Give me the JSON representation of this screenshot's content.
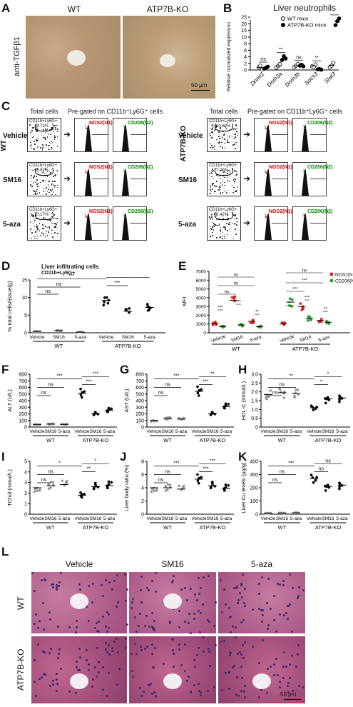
{
  "panelA": {
    "letter": "A",
    "wt": "WT",
    "ko": "ATP7B-KO",
    "ylabel": "anti-TGFβ1",
    "scale": "50 μm"
  },
  "panelB": {
    "letter": "B",
    "title": "Liver neutrophils",
    "ylabel": "Relative normalized expression",
    "legend": [
      "WT mice",
      "ATP7B-KO mice"
    ],
    "chart_data": {
      "type": "scatter",
      "categories": [
        "Dnmt1",
        "Dnm3a",
        "Dnm3b",
        "Socs3",
        "Stat3"
      ],
      "ylim": [
        0,
        25
      ],
      "yticks": [
        "0",
        "2",
        "4",
        "6",
        "8",
        "10",
        "15",
        "20",
        "25"
      ],
      "series": [
        {
          "name": "WT mice",
          "values": [
            [
              0.8,
              1.3,
              0.2
            ],
            [
              0.7,
              1.2,
              1.8
            ],
            [
              0.8,
              1.3,
              1.8
            ],
            [
              1.1,
              0.9,
              1.7
            ],
            [
              0.8,
              1.3,
              2.2
            ]
          ]
        },
        {
          "name": "ATP7B-KO mice",
          "values": [
            [
              0.4,
              0.7,
              1.0
            ],
            [
              3.0,
              4.2,
              3.5
            ],
            [
              1.3,
              1.6,
              1.1
            ],
            [
              0.2,
              0.3,
              0.1
            ],
            [
              19.0,
              22.0,
              24.0
            ]
          ]
        }
      ],
      "significance": [
        "ns",
        "**",
        "ns",
        "**",
        "*"
      ]
    }
  },
  "panelC": {
    "letter": "C",
    "total": "Total cells",
    "pregated": "Pre-gated on CD11b⁺Ly6G⁺ cells",
    "left": {
      "group": "WT",
      "rows": [
        {
          "name": "Vehicle",
          "pct": "9.72%"
        },
        {
          "name": "SM16",
          "pct": "6.92%"
        },
        {
          "name": "5-aza",
          "pct": "0.17%"
        }
      ]
    },
    "right": {
      "group": "ATP7B-KO",
      "rows": [
        {
          "name": "Vehicle",
          "pct": "10.60%"
        },
        {
          "name": "SM16",
          "pct": "7.00%"
        },
        {
          "name": "5-aza",
          "pct": "6.42%"
        }
      ]
    },
    "gate": "CD11b+Ly6G+",
    "n1": "NOS2(N1)",
    "n2": "CD206(N2)"
  },
  "panelD": {
    "letter": "D",
    "title": "Liver infiltrating cells",
    "subtitle": "CD11b+Ly6G+",
    "ylabel": "% total cells/tissue(g)",
    "chart_data": {
      "type": "scatter",
      "categories": [
        "Vehicle",
        "SM16",
        "5-aza",
        "Vehicle",
        "SM16",
        "5-aza"
      ],
      "groups": [
        "WT",
        "ATP7B-KO"
      ],
      "ylim": [
        0,
        15
      ],
      "yticks": [
        "0",
        "5",
        "10",
        "15"
      ],
      "means": [
        0.4,
        0.6,
        0.2,
        9.2,
        6.1,
        7.2
      ],
      "sig": [
        "ns",
        "ns",
        "***",
        "***",
        "*"
      ]
    }
  },
  "panelE": {
    "letter": "E",
    "ylabel": "MFI",
    "legend": [
      "NOS2(N1)",
      "CD206(N2)"
    ],
    "chart_data": {
      "type": "scatter",
      "categories": [
        "Vehicle",
        "SM16",
        "5-aza",
        "Vehicle",
        "SM16",
        "5-aza"
      ],
      "groups": [
        "WT",
        "ATP7B-KO"
      ],
      "ylim": [
        0,
        7000
      ],
      "yticks": [
        "0",
        "1000",
        "2000",
        "3000",
        "4000",
        "5000",
        "6000",
        "7000"
      ],
      "series": [
        {
          "name": "NOS2(N1)",
          "means": [
            1100,
            3700,
            1300,
            1000,
            3000,
            1400
          ]
        },
        {
          "name": "CD206(N2)",
          "means": [
            700,
            900,
            700,
            3500,
            1600,
            1200
          ]
        }
      ],
      "sig": [
        "***",
        "***",
        "**",
        "ns",
        "ns",
        "ns",
        "***",
        "***",
        "**",
        "***",
        "***",
        "ns"
      ]
    }
  },
  "panelF": {
    "letter": "F",
    "ylabel": "ALT (U/L)",
    "chart_data": {
      "type": "scatter",
      "categories": [
        "Vehicle",
        "SM16",
        "5-aza",
        "Vehicle",
        "SM16",
        "5-aza"
      ],
      "groups": [
        "WT",
        "ATP7B-KO"
      ],
      "ylim": [
        0,
        800
      ],
      "yticks": [
        "0",
        "100",
        "200",
        "300",
        "400",
        "500",
        "600",
        "700",
        "800"
      ],
      "means": [
        40,
        45,
        40,
        510,
        200,
        250
      ],
      "sig": [
        "ns",
        "ns",
        "***",
        "***",
        "***"
      ]
    }
  },
  "panelG": {
    "letter": "G",
    "ylabel": "AST (U/L)",
    "chart_data": {
      "type": "scatter",
      "categories": [
        "Vehicle",
        "SM16",
        "5-aza",
        "Vehicle",
        "SM16",
        "5-aza"
      ],
      "groups": [
        "WT",
        "ATP7B-KO"
      ],
      "ylim": [
        0,
        800
      ],
      "yticks": [
        "0",
        "100",
        "200",
        "300",
        "400",
        "500",
        "600",
        "700",
        "800"
      ],
      "means": [
        100,
        130,
        120,
        540,
        200,
        310
      ],
      "sig": [
        "ns",
        "ns",
        "***",
        "***",
        "**"
      ]
    }
  },
  "panelH": {
    "letter": "H",
    "ylabel": "HDL-C (mmol/L)",
    "chart_data": {
      "type": "scatter",
      "categories": [
        "Vehicle",
        "SM16",
        "5-aza",
        "Vehicle",
        "SM16",
        "5-aza"
      ],
      "groups": [
        "WT",
        "ATP7B-KO"
      ],
      "ylim": [
        0,
        3
      ],
      "yticks": [
        "0",
        "0.5",
        "1.0",
        "1.5",
        "2.0",
        "2.5",
        "3.0"
      ],
      "means": [
        1.85,
        1.95,
        1.9,
        1.1,
        1.6,
        1.65
      ],
      "sig": [
        "ns",
        "ns",
        "**",
        "*",
        "*"
      ]
    }
  },
  "panelI": {
    "letter": "I",
    "ylabel": "TChol (mmol/L)",
    "chart_data": {
      "type": "scatter",
      "categories": [
        "Vehicle",
        "SM16",
        "5-aza",
        "Vehicle",
        "SM16",
        "5-aza"
      ],
      "groups": [
        "WT",
        "ATP7B-KO"
      ],
      "ylim": [
        0,
        5
      ],
      "yticks": [
        "0",
        "1",
        "2",
        "3",
        "4",
        "5"
      ],
      "means": [
        2.5,
        2.7,
        2.8,
        1.8,
        2.6,
        2.7
      ],
      "sig": [
        "ns",
        "ns",
        "*",
        "**",
        "*"
      ]
    }
  },
  "panelJ": {
    "letter": "J",
    "ylabel": "Liver body ratio (%)",
    "chart_data": {
      "type": "scatter",
      "categories": [
        "Vehicle",
        "SM16",
        "5-aza",
        "Vehicle",
        "SM16",
        "5-aza"
      ],
      "groups": [
        "WT",
        "ATP7B-KO"
      ],
      "ylim": [
        0,
        8
      ],
      "yticks": [
        "0",
        "2",
        "4",
        "6",
        "8"
      ],
      "means": [
        4.0,
        4.0,
        3.8,
        5.3,
        4.3,
        3.9
      ],
      "sig": [
        "ns",
        "ns",
        "***",
        "***",
        "***"
      ]
    }
  },
  "panelK": {
    "letter": "K",
    "ylabel": "Liver Cu levels (μg/g)",
    "chart_data": {
      "type": "scatter",
      "categories": [
        "Vehicle",
        "SM16",
        "5-aza",
        "Vehicle",
        "SM16",
        "5-aza"
      ],
      "groups": [
        "WT",
        "ATP7B-KO"
      ],
      "ylim": [
        0,
        400
      ],
      "yticks": [
        "0",
        "100",
        "200",
        "300",
        "400"
      ],
      "means": [
        8,
        9,
        10,
        270,
        210,
        220
      ],
      "sig": [
        "ns",
        "ns",
        "***",
        "ns",
        "ns"
      ]
    }
  },
  "panelL": {
    "letter": "L",
    "cols": [
      "Vehicle",
      "SM16",
      "5-aza"
    ],
    "rows": [
      "WT",
      "ATP7B-KO"
    ],
    "scale": "50 μm"
  },
  "xcats": {
    "wt": "WT",
    "ko": "ATP7B-KO",
    "vehicle": "Vehicle",
    "sm16": "SM16",
    "aza": "5-aza"
  }
}
